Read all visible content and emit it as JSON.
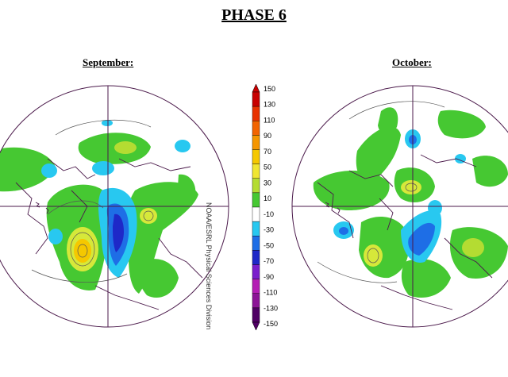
{
  "page": {
    "title": "PHASE 6"
  },
  "panels": [
    {
      "id": "september",
      "label": "September:"
    },
    {
      "id": "october",
      "label": "October:"
    }
  ],
  "colorbar": {
    "ticks": [
      "150",
      "130",
      "110",
      "90",
      "70",
      "50",
      "30",
      "10",
      "-10",
      "-30",
      "-50",
      "-70",
      "-90",
      "-110",
      "-130",
      "-150"
    ],
    "colors": [
      "#c80000",
      "#e83200",
      "#f26400",
      "#f59600",
      "#f5c800",
      "#f0e632",
      "#b4dc32",
      "#46c832",
      "#ffffff",
      "#28c8f0",
      "#1e6ee6",
      "#1e28c8",
      "#7a1ecc",
      "#b41eb4",
      "#8c1496",
      "#500064"
    ]
  },
  "credit": "NOAA/ESRL Physical Sciences Division"
}
